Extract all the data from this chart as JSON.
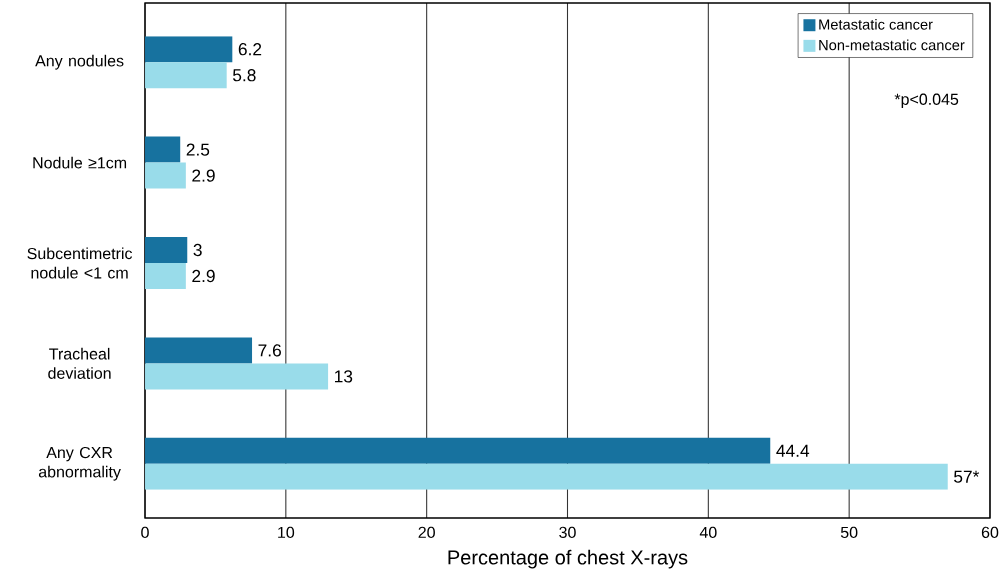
{
  "chart_data": {
    "type": "bar",
    "orientation": "horizontal",
    "categories": [
      "Any nodules",
      "Nodule ≥1cm",
      "Subcentimetric nodule <1 cm",
      "Tracheal deviation",
      "Any CXR abnormality"
    ],
    "series": [
      {
        "name": "Metastatic cancer",
        "color": "#17729f",
        "values": [
          6.2,
          2.5,
          3,
          7.6,
          44.4
        ],
        "value_labels": [
          "6.2",
          "2.5",
          "3",
          "7.6",
          "44.4"
        ]
      },
      {
        "name": "Non-metastatic cancer",
        "color": "#99dcea",
        "values": [
          5.8,
          2.9,
          2.9,
          13,
          57
        ],
        "value_labels": [
          "5.8",
          "2.9",
          "2.9",
          "13",
          "57*"
        ]
      }
    ],
    "xlabel": "Percentage of chest X-rays",
    "xlim": [
      0,
      60
    ],
    "xticks": [
      0,
      10,
      20,
      30,
      40,
      50,
      60
    ],
    "grid": "x",
    "legend": "top right",
    "annotations": [
      "*p<0.045"
    ]
  }
}
